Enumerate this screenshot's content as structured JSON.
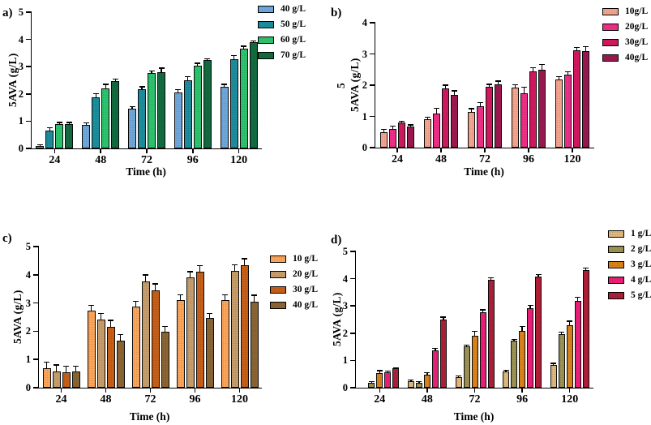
{
  "chart_data": [
    {
      "type": "bar",
      "panel_label": "a)",
      "ylabel": "5AVA (g/L)",
      "xlabel": "Time (h)",
      "ymax": 5,
      "yticks": [
        0,
        1,
        2,
        3,
        4,
        5
      ],
      "categories": [
        "24",
        "48",
        "72",
        "96",
        "120"
      ],
      "legend_position": "right-top",
      "grid": false,
      "series": [
        {
          "name": "40 g/L",
          "color": "#6FA8DC",
          "values": [
            0.08,
            0.85,
            1.47,
            2.05,
            2.26
          ],
          "errors": [
            0.03,
            0.07,
            0.05,
            0.09,
            0.07
          ]
        },
        {
          "name": "50 g/L",
          "color": "#1C8E9E",
          "values": [
            0.65,
            1.88,
            2.16,
            2.51,
            3.27
          ],
          "errors": [
            0.08,
            0.12,
            0.08,
            0.11,
            0.12
          ]
        },
        {
          "name": "60 g/L",
          "color": "#2DC46E",
          "values": [
            0.9,
            2.21,
            2.76,
            3.05,
            3.65
          ],
          "errors": [
            0.03,
            0.12,
            0.06,
            0.06,
            0.08
          ]
        },
        {
          "name": "70 g/L",
          "color": "#136B3F",
          "values": [
            0.9,
            2.46,
            2.8,
            3.23,
            3.89
          ],
          "errors": [
            0.03,
            0.06,
            0.13,
            0.05,
            0.04
          ]
        }
      ]
    },
    {
      "type": "bar",
      "panel_label": "b)",
      "ylabel": "5AVA (g/L)",
      "ylabel_extra": "5",
      "xlabel": "Time (h)",
      "ymax": 4,
      "yticks": [
        0,
        1,
        2,
        3,
        4
      ],
      "categories": [
        "24",
        "48",
        "72",
        "96",
        "120"
      ],
      "legend_position": "right-top",
      "grid": false,
      "series": [
        {
          "name": "10g/L",
          "color": "#F5A58F",
          "values": [
            0.5,
            0.9,
            1.15,
            1.92,
            2.17
          ],
          "errors": [
            0.06,
            0.05,
            0.08,
            0.08,
            0.08
          ]
        },
        {
          "name": "20g/L",
          "color": "#EF2E88",
          "values": [
            0.6,
            1.1,
            1.33,
            1.74,
            2.35
          ],
          "errors": [
            0.08,
            0.15,
            0.1,
            0.17,
            0.07
          ]
        },
        {
          "name": "30g/L",
          "color": "#D2195F",
          "values": [
            0.8,
            1.9,
            1.95,
            2.45,
            3.12
          ],
          "errors": [
            0.03,
            0.08,
            0.06,
            0.1,
            0.07
          ]
        },
        {
          "name": "40g/L",
          "color": "#9C1950",
          "values": [
            0.67,
            1.68,
            2.03,
            2.49,
            3.08
          ],
          "errors": [
            0.04,
            0.12,
            0.08,
            0.15,
            0.13
          ]
        }
      ]
    },
    {
      "type": "bar",
      "panel_label": "c)",
      "ylabel": "5AVA (g/L)",
      "xlabel": "Time (h)",
      "ymax": 5,
      "yticks": [
        0,
        1,
        2,
        3,
        4,
        5
      ],
      "categories": [
        "24",
        "48",
        "72",
        "96",
        "120"
      ],
      "legend_position": "right-top",
      "grid": false,
      "series": [
        {
          "name": "10 g/L",
          "color": "#FCA55A",
          "values": [
            0.68,
            2.72,
            2.87,
            3.1,
            3.1
          ],
          "errors": [
            0.2,
            0.18,
            0.17,
            0.18,
            0.17
          ]
        },
        {
          "name": "20 g/L",
          "color": "#C79E6B",
          "values": [
            0.57,
            2.4,
            3.76,
            3.91,
            4.13
          ],
          "errors": [
            0.22,
            0.22,
            0.22,
            0.18,
            0.2
          ]
        },
        {
          "name": "30 g/L",
          "color": "#C75F17",
          "values": [
            0.54,
            2.15,
            3.44,
            4.1,
            4.33
          ],
          "errors": [
            0.2,
            0.22,
            0.22,
            0.2,
            0.22
          ]
        },
        {
          "name": "40 g/L",
          "color": "#8B6533",
          "values": [
            0.57,
            1.68,
            1.97,
            2.47,
            3.06
          ],
          "errors": [
            0.17,
            0.18,
            0.18,
            0.15,
            0.2
          ]
        }
      ]
    },
    {
      "type": "bar",
      "panel_label": "d)",
      "ylabel": "5AVA (g/L)",
      "xlabel": "Time (h)",
      "ymax": 5,
      "yticks": [
        0,
        1,
        2,
        3,
        4,
        5
      ],
      "categories": [
        "24",
        "48",
        "72",
        "96",
        "120"
      ],
      "legend_position": "right-top",
      "grid": false,
      "series": [
        {
          "name": "1 g/L",
          "color": "#DFB87D",
          "values": [
            0,
            0.24,
            0.39,
            0.59,
            0.83
          ],
          "errors": [
            0,
            0.03,
            0.03,
            0.04,
            0.04
          ]
        },
        {
          "name": "2 g/L",
          "color": "#9B9253",
          "values": [
            0.18,
            0.18,
            1.51,
            1.72,
            1.95
          ],
          "errors": [
            0.02,
            0.03,
            0.03,
            0.04,
            0.06
          ]
        },
        {
          "name": "3 g/L",
          "color": "#DA831A",
          "values": [
            0.55,
            0.48,
            1.92,
            2.08,
            2.29
          ],
          "errors": [
            0.06,
            0.05,
            0.12,
            0.15,
            0.13
          ]
        },
        {
          "name": "4 g/L",
          "color": "#ED1E78",
          "values": [
            0.56,
            1.38,
            2.77,
            2.93,
            3.19
          ],
          "errors": [
            0.04,
            0.05,
            0.07,
            0.08,
            0.12
          ]
        },
        {
          "name": "5 g/L",
          "color": "#B01F37",
          "values": [
            0.7,
            2.5,
            3.96,
            4.08,
            4.32
          ],
          "errors": [
            0.02,
            0.07,
            0.06,
            0.05,
            0.06
          ]
        }
      ]
    }
  ]
}
